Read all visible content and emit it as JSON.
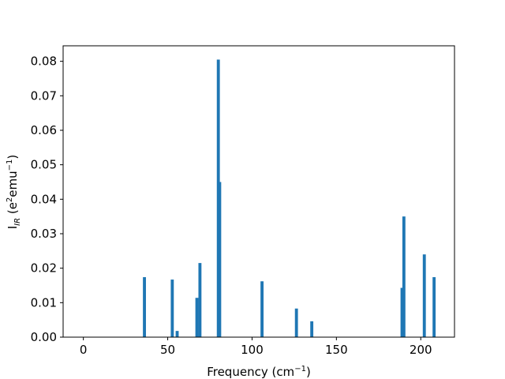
{
  "chart_data": {
    "type": "bar",
    "title": "",
    "xlabel": {
      "main": "Frequency (cm",
      "sup": "−1",
      "tail": ")"
    },
    "ylabel": {
      "main": "I",
      "sub": "IR",
      "mid": " (e",
      "sup1": "2",
      "mid2": "emu",
      "sup2": "−1",
      "tail": ")"
    },
    "xlim": [
      -12,
      220
    ],
    "ylim": [
      0,
      0.0845
    ],
    "xticks": [
      {
        "value": 0,
        "label": "0"
      },
      {
        "value": 50,
        "label": "50"
      },
      {
        "value": 100,
        "label": "100"
      },
      {
        "value": 150,
        "label": "150"
      },
      {
        "value": 200,
        "label": "200"
      }
    ],
    "yticks": [
      {
        "value": 0.0,
        "label": "0.00"
      },
      {
        "value": 0.01,
        "label": "0.01"
      },
      {
        "value": 0.02,
        "label": "0.02"
      },
      {
        "value": 0.03,
        "label": "0.03"
      },
      {
        "value": 0.04,
        "label": "0.04"
      },
      {
        "value": 0.05,
        "label": "0.05"
      },
      {
        "value": 0.06,
        "label": "0.06"
      },
      {
        "value": 0.07,
        "label": "0.07"
      },
      {
        "value": 0.08,
        "label": "0.08"
      }
    ],
    "bar_width": 1.8,
    "bar_color": "#1f77b4",
    "bars": [
      {
        "x": 36.2,
        "y": 0.0174
      },
      {
        "x": 52.7,
        "y": 0.0167
      },
      {
        "x": 55.6,
        "y": 0.0018
      },
      {
        "x": 67.3,
        "y": 0.0114
      },
      {
        "x": 69.1,
        "y": 0.0215
      },
      {
        "x": 80.0,
        "y": 0.0805
      },
      {
        "x": 80.8,
        "y": 0.045
      },
      {
        "x": 105.9,
        "y": 0.0162
      },
      {
        "x": 126.3,
        "y": 0.0083
      },
      {
        "x": 135.4,
        "y": 0.0046
      },
      {
        "x": 188.9,
        "y": 0.0143
      },
      {
        "x": 190.0,
        "y": 0.035
      },
      {
        "x": 202.1,
        "y": 0.024
      },
      {
        "x": 207.9,
        "y": 0.0174
      }
    ]
  }
}
